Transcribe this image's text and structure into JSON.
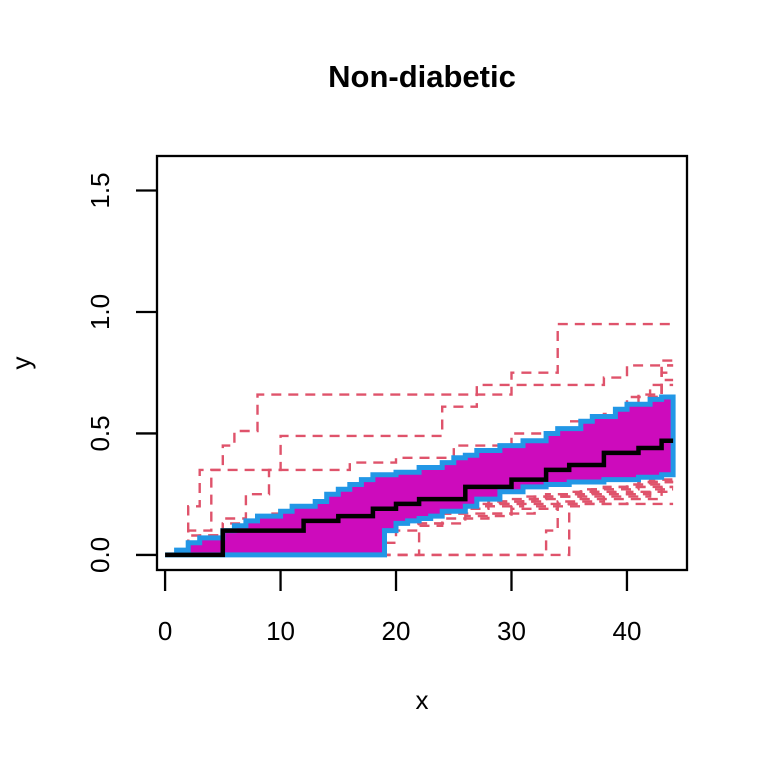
{
  "page": {
    "background": "#FFFFFF"
  },
  "chart_data": {
    "type": "line",
    "title": "Non-diabetic",
    "xlabel": "x",
    "ylabel": "y",
    "x_ticks": [
      "0",
      "10",
      "20",
      "30",
      "40"
    ],
    "x_tick_values": [
      0,
      10,
      20,
      30,
      40
    ],
    "y_ticks": [
      "0.0",
      "0.5",
      "1.0",
      "1.5"
    ],
    "y_tick_values": [
      0,
      0.5,
      1.0,
      1.5
    ],
    "xlim": [
      -0.7,
      45.2
    ],
    "ylim": [
      -0.062,
      1.642
    ],
    "x_end": 44,
    "step": "after",
    "grid": false,
    "legend": "none",
    "colors": {
      "band_fill": "#CD0BBC",
      "band_border": "#2297E6",
      "median": "#000000",
      "trajectories": "#DF536B"
    },
    "band": {
      "upper": [
        [
          0,
          0
        ],
        [
          1,
          0.02
        ],
        [
          2,
          0.05
        ],
        [
          3,
          0.07
        ],
        [
          5,
          0.1
        ],
        [
          6,
          0.12
        ],
        [
          7,
          0.14
        ],
        [
          8,
          0.16
        ],
        [
          10,
          0.18
        ],
        [
          11,
          0.2
        ],
        [
          13,
          0.22
        ],
        [
          14,
          0.25
        ],
        [
          15,
          0.27
        ],
        [
          16,
          0.29
        ],
        [
          17,
          0.31
        ],
        [
          18,
          0.33
        ],
        [
          20,
          0.34
        ],
        [
          22,
          0.36
        ],
        [
          24,
          0.38
        ],
        [
          25,
          0.4
        ],
        [
          26,
          0.41
        ],
        [
          27,
          0.43
        ],
        [
          29,
          0.45
        ],
        [
          31,
          0.47
        ],
        [
          33,
          0.5
        ],
        [
          34,
          0.52
        ],
        [
          36,
          0.55
        ],
        [
          37,
          0.57
        ],
        [
          39,
          0.6
        ],
        [
          40,
          0.62
        ],
        [
          42,
          0.64
        ],
        [
          43,
          0.65
        ]
      ],
      "lower": [
        [
          0,
          0
        ],
        [
          19,
          0.1
        ],
        [
          20,
          0.13
        ],
        [
          21,
          0.14
        ],
        [
          22,
          0.15
        ],
        [
          23,
          0.16
        ],
        [
          24,
          0.18
        ],
        [
          26,
          0.2
        ],
        [
          27,
          0.23
        ],
        [
          29,
          0.26
        ],
        [
          31,
          0.28
        ],
        [
          33,
          0.29
        ],
        [
          35,
          0.3
        ],
        [
          38,
          0.31
        ],
        [
          41,
          0.32
        ],
        [
          43,
          0.33
        ]
      ]
    },
    "median": [
      [
        0,
        0
      ],
      [
        5,
        0.1
      ],
      [
        12,
        0.14
      ],
      [
        15,
        0.16
      ],
      [
        18,
        0.19
      ],
      [
        20,
        0.21
      ],
      [
        22,
        0.23
      ],
      [
        26,
        0.28
      ],
      [
        30,
        0.31
      ],
      [
        33,
        0.35
      ],
      [
        35,
        0.37
      ],
      [
        38,
        0.42
      ],
      [
        41,
        0.44
      ],
      [
        43,
        0.47
      ]
    ],
    "trajectories": [
      [
        [
          1,
          0
        ],
        [
          2,
          0.2
        ],
        [
          3,
          0.35
        ],
        [
          5,
          0.45
        ],
        [
          6,
          0.51
        ],
        [
          8,
          0.66
        ],
        [
          30,
          0.75
        ],
        [
          34,
          0.95
        ]
      ],
      [
        [
          1,
          0
        ],
        [
          3,
          0.08
        ],
        [
          5,
          0.15
        ],
        [
          7,
          0.25
        ],
        [
          9,
          0.35
        ],
        [
          10,
          0.49
        ],
        [
          24,
          0.61
        ],
        [
          27,
          0.7
        ],
        [
          38,
          0.73
        ],
        [
          40,
          0.78
        ]
      ],
      [
        [
          1,
          0
        ],
        [
          2,
          0.1
        ],
        [
          4,
          0.35
        ],
        [
          16,
          0.38
        ],
        [
          20,
          0.4
        ],
        [
          25,
          0.45
        ],
        [
          30,
          0.5
        ],
        [
          35,
          0.55
        ],
        [
          40,
          0.6
        ],
        [
          43,
          0.65
        ]
      ],
      [
        [
          1,
          0
        ],
        [
          4,
          0.02
        ],
        [
          7,
          0.05
        ],
        [
          10,
          0.08
        ],
        [
          13,
          0.11
        ],
        [
          16,
          0.13
        ],
        [
          19,
          0.15
        ],
        [
          22,
          0.17
        ],
        [
          25,
          0.19
        ],
        [
          28,
          0.21
        ],
        [
          31,
          0.23
        ],
        [
          34,
          0.25
        ],
        [
          37,
          0.27
        ],
        [
          40,
          0.29
        ],
        [
          43,
          0.31
        ]
      ],
      [
        [
          1,
          0
        ],
        [
          3,
          0.03
        ],
        [
          6,
          0.06
        ],
        [
          9,
          0.09
        ],
        [
          12,
          0.12
        ],
        [
          15,
          0.14
        ],
        [
          18,
          0.16
        ],
        [
          21,
          0.18
        ],
        [
          24,
          0.19
        ],
        [
          27,
          0.21
        ],
        [
          30,
          0.23
        ],
        [
          33,
          0.24
        ],
        [
          36,
          0.26
        ],
        [
          39,
          0.28
        ],
        [
          42,
          0.3
        ]
      ],
      [
        [
          1,
          0
        ],
        [
          5,
          0.04
        ],
        [
          8,
          0.07
        ],
        [
          11,
          0.1
        ],
        [
          14,
          0.13
        ],
        [
          17,
          0.15
        ],
        [
          20,
          0.16
        ],
        [
          23,
          0.18
        ],
        [
          26,
          0.2
        ],
        [
          29,
          0.22
        ],
        [
          32,
          0.24
        ],
        [
          35,
          0.26
        ],
        [
          38,
          0.28
        ],
        [
          41,
          0.3
        ]
      ],
      [
        [
          1,
          0
        ],
        [
          2,
          0.05
        ],
        [
          6,
          0.08
        ],
        [
          10,
          0.11
        ],
        [
          14,
          0.14
        ],
        [
          18,
          0.17
        ],
        [
          23,
          0.19
        ],
        [
          28,
          0.22
        ],
        [
          33,
          0.25
        ],
        [
          38,
          0.28
        ],
        [
          42,
          0.31
        ]
      ],
      [
        [
          1,
          0
        ],
        [
          4,
          0.03
        ],
        [
          9,
          0.07
        ],
        [
          13,
          0.1
        ],
        [
          17,
          0.14
        ],
        [
          21,
          0.17
        ],
        [
          26,
          0.2
        ],
        [
          31,
          0.24
        ],
        [
          36,
          0.27
        ],
        [
          41,
          0.3
        ]
      ],
      [
        [
          1,
          0
        ],
        [
          19,
          0.05
        ],
        [
          20,
          0.1
        ],
        [
          22,
          0.13
        ],
        [
          26,
          0.16
        ],
        [
          30,
          0.19
        ],
        [
          34,
          0.22
        ],
        [
          38,
          0.25
        ],
        [
          42,
          0.28
        ]
      ],
      [
        [
          1,
          0
        ],
        [
          22,
          0.12
        ],
        [
          24,
          0.15
        ],
        [
          28,
          0.17
        ],
        [
          32,
          0.2
        ],
        [
          36,
          0.23
        ],
        [
          40,
          0.26
        ],
        [
          43,
          0.28
        ]
      ],
      [
        [
          1,
          0
        ],
        [
          33,
          0.1
        ],
        [
          34,
          0.21
        ],
        [
          40,
          0.23
        ],
        [
          43,
          0.26
        ]
      ],
      [
        [
          1,
          0
        ],
        [
          35,
          0.21
        ]
      ],
      [
        [
          1,
          0
        ],
        [
          6,
          0.05
        ],
        [
          12,
          0.09
        ],
        [
          18,
          0.13
        ],
        [
          24,
          0.17
        ],
        [
          30,
          0.21
        ],
        [
          36,
          0.24
        ],
        [
          42,
          0.27
        ]
      ],
      [
        [
          1,
          0
        ],
        [
          3,
          0.06
        ],
        [
          5,
          0.1
        ],
        [
          8,
          0.14
        ],
        [
          11,
          0.18
        ],
        [
          14,
          0.22
        ],
        [
          17,
          0.26
        ],
        [
          20,
          0.3
        ],
        [
          23,
          0.33
        ],
        [
          26,
          0.36
        ],
        [
          29,
          0.4
        ],
        [
          32,
          0.44
        ],
        [
          35,
          0.48
        ],
        [
          38,
          0.52
        ],
        [
          41,
          0.56
        ],
        [
          43,
          0.6
        ]
      ],
      [
        [
          1,
          0
        ],
        [
          2,
          0.08
        ],
        [
          5,
          0.13
        ],
        [
          9,
          0.17
        ],
        [
          13,
          0.21
        ],
        [
          17,
          0.25
        ],
        [
          21,
          0.29
        ],
        [
          25,
          0.34
        ],
        [
          29,
          0.38
        ],
        [
          33,
          0.43
        ],
        [
          36,
          0.48
        ],
        [
          39,
          0.54
        ],
        [
          42,
          0.6
        ],
        [
          43,
          0.63
        ]
      ],
      [
        [
          1,
          0
        ],
        [
          4,
          0.07
        ],
        [
          8,
          0.12
        ],
        [
          12,
          0.17
        ],
        [
          16,
          0.22
        ],
        [
          20,
          0.27
        ],
        [
          24,
          0.32
        ],
        [
          28,
          0.37
        ],
        [
          32,
          0.42
        ],
        [
          36,
          0.48
        ],
        [
          40,
          0.55
        ],
        [
          43,
          0.62
        ]
      ],
      [
        [
          1,
          0
        ],
        [
          3,
          0.05
        ],
        [
          7,
          0.1
        ],
        [
          11,
          0.16
        ],
        [
          15,
          0.21
        ],
        [
          19,
          0.27
        ],
        [
          23,
          0.32
        ],
        [
          27,
          0.38
        ],
        [
          31,
          0.44
        ],
        [
          35,
          0.5
        ],
        [
          39,
          0.57
        ],
        [
          42,
          0.65
        ],
        [
          43,
          0.7
        ]
      ],
      [
        [
          1,
          0
        ],
        [
          5,
          0.08
        ],
        [
          10,
          0.15
        ],
        [
          15,
          0.22
        ],
        [
          20,
          0.28
        ],
        [
          25,
          0.35
        ],
        [
          30,
          0.42
        ],
        [
          34,
          0.5
        ],
        [
          38,
          0.58
        ],
        [
          41,
          0.66
        ],
        [
          43,
          0.72
        ]
      ],
      [
        [
          1,
          0
        ],
        [
          4,
          0.06
        ],
        [
          9,
          0.13
        ],
        [
          14,
          0.19
        ],
        [
          19,
          0.25
        ],
        [
          24,
          0.31
        ],
        [
          28,
          0.38
        ],
        [
          32,
          0.45
        ],
        [
          36,
          0.53
        ],
        [
          40,
          0.62
        ],
        [
          43,
          0.75
        ]
      ],
      [
        [
          1,
          0
        ],
        [
          6,
          0.09
        ],
        [
          12,
          0.16
        ],
        [
          18,
          0.24
        ],
        [
          24,
          0.31
        ],
        [
          30,
          0.4
        ],
        [
          35,
          0.5
        ],
        [
          39,
          0.6
        ],
        [
          42,
          0.7
        ],
        [
          43,
          0.78
        ]
      ],
      [
        [
          1,
          0
        ],
        [
          7,
          0.11
        ],
        [
          13,
          0.18
        ],
        [
          19,
          0.26
        ],
        [
          25,
          0.34
        ],
        [
          31,
          0.43
        ],
        [
          36,
          0.54
        ],
        [
          40,
          0.65
        ],
        [
          43,
          0.8
        ]
      ],
      [
        [
          1,
          0
        ],
        [
          2,
          0.03
        ],
        [
          4,
          0.08
        ],
        [
          6,
          0.12
        ],
        [
          9,
          0.15
        ],
        [
          12,
          0.18
        ],
        [
          15,
          0.21
        ],
        [
          18,
          0.24
        ],
        [
          21,
          0.27
        ],
        [
          24,
          0.3
        ],
        [
          27,
          0.33
        ],
        [
          30,
          0.36
        ],
        [
          33,
          0.39
        ],
        [
          36,
          0.43
        ],
        [
          39,
          0.47
        ],
        [
          42,
          0.52
        ]
      ],
      [
        [
          1,
          0
        ],
        [
          3,
          0.04
        ],
        [
          6,
          0.09
        ],
        [
          10,
          0.13
        ],
        [
          14,
          0.17
        ],
        [
          18,
          0.21
        ],
        [
          22,
          0.25
        ],
        [
          26,
          0.29
        ],
        [
          30,
          0.33
        ],
        [
          34,
          0.38
        ],
        [
          38,
          0.44
        ],
        [
          42,
          0.5
        ]
      ],
      [
        [
          1,
          0
        ],
        [
          5,
          0.06
        ],
        [
          9,
          0.11
        ],
        [
          13,
          0.15
        ],
        [
          17,
          0.19
        ],
        [
          21,
          0.23
        ],
        [
          25,
          0.27
        ],
        [
          29,
          0.31
        ],
        [
          33,
          0.36
        ],
        [
          37,
          0.41
        ],
        [
          41,
          0.47
        ],
        [
          43,
          0.52
        ]
      ]
    ]
  }
}
